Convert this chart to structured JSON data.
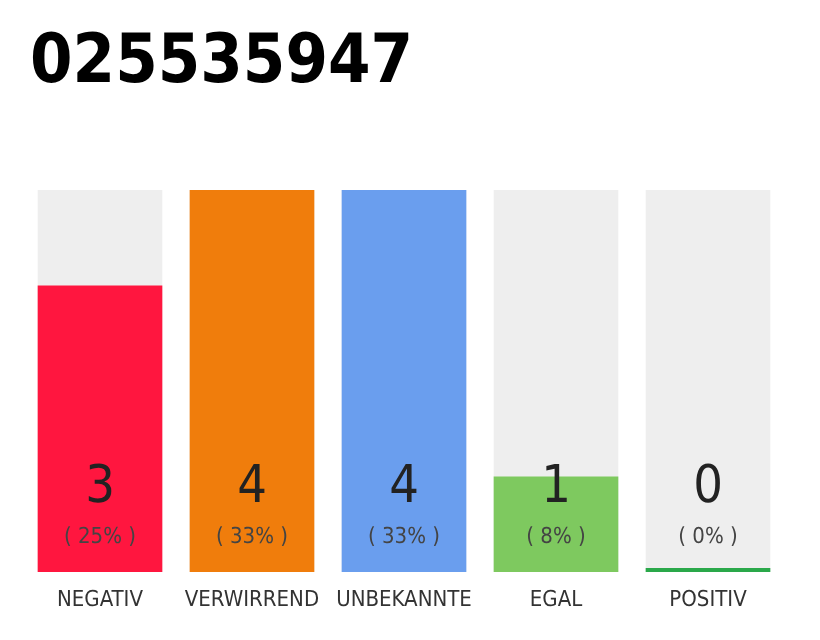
{
  "chart_data": {
    "type": "bar",
    "title": "025535947",
    "categories": [
      "NEGATIV",
      "VERWIRREND",
      "UNBEKANNTE",
      "EGAL",
      "POSITIV"
    ],
    "values": [
      3,
      4,
      4,
      1,
      0
    ],
    "colors": [
      "#ff163f",
      "#f07d0c",
      "#6a9eee",
      "#7ec95f",
      "#2aa84a"
    ],
    "value_labels": [
      "3\n( 25% )",
      "4\n( 33% )",
      "4\n( 33% )",
      "1\n( 8% )",
      "0\n( 0% )"
    ]
  }
}
